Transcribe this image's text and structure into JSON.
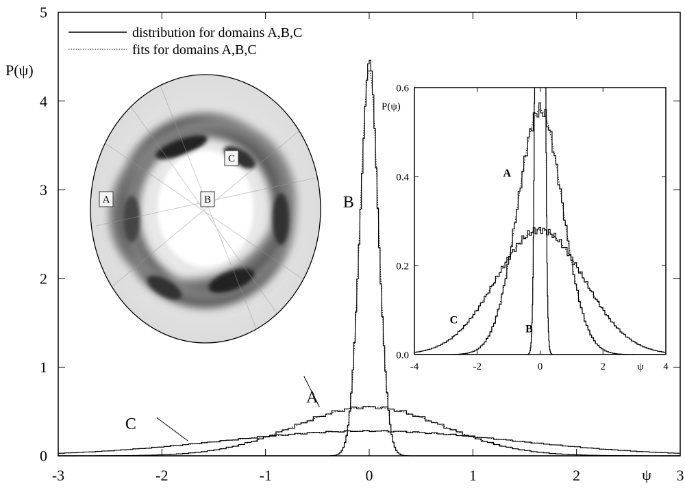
{
  "chart_data": [
    {
      "type": "line",
      "xlabel": "ψ",
      "ylabel": "P(ψ)",
      "xlim": [
        -3,
        3
      ],
      "ylim": [
        0,
        5
      ],
      "xticks": [
        "-3",
        "-2",
        "-1",
        "0",
        "1",
        "2",
        "3"
      ],
      "yticks": [
        "0",
        "1",
        "2",
        "3",
        "4",
        "5"
      ],
      "legend_position": "top-left",
      "legend": [
        {
          "label": "distribution for domains A,B,C",
          "style": "solid"
        },
        {
          "label": "fits for domains A,B,C",
          "style": "dotted"
        }
      ],
      "series": [
        {
          "name": "A",
          "kind": "gaussian",
          "amplitude": 0.55,
          "mean": 0.0,
          "sigma": 0.72
        },
        {
          "name": "B",
          "kind": "gaussian",
          "amplitude": 4.35,
          "mean": 0.0,
          "sigma": 0.09
        },
        {
          "name": "C",
          "kind": "gaussian",
          "amplitude": 0.28,
          "mean": 0.0,
          "sigma": 1.4
        }
      ],
      "annotations": [
        {
          "text": "A",
          "x": -0.55,
          "y": 0.6
        },
        {
          "text": "B",
          "x": -0.2,
          "y": 2.8
        },
        {
          "text": "C",
          "x": -2.3,
          "y": 0.3
        }
      ]
    },
    {
      "type": "line",
      "subplot": "inset",
      "xlabel": "ψ",
      "ylabel": "P(ψ)",
      "xlim": [
        -4,
        4
      ],
      "ylim": [
        0,
        0.6
      ],
      "xticks": [
        "-4",
        "-2",
        "0",
        "2",
        "4"
      ],
      "yticks": [
        "0.0",
        "0.2",
        "0.4",
        "0.6"
      ],
      "series": [
        {
          "name": "A",
          "kind": "gaussian",
          "amplitude": 0.55,
          "mean": 0.0,
          "sigma": 0.72
        },
        {
          "name": "B",
          "kind": "gaussian",
          "amplitude": 4.35,
          "mean": 0.0,
          "sigma": 0.09
        },
        {
          "name": "C",
          "kind": "gaussian",
          "amplitude": 0.28,
          "mean": 0.0,
          "sigma": 1.4
        }
      ],
      "annotations": [
        {
          "text": "A",
          "x": -1.05,
          "y": 0.4
        },
        {
          "text": "B",
          "x": -0.35,
          "y": 0.05
        },
        {
          "text": "C",
          "x": -2.75,
          "y": 0.07
        }
      ]
    }
  ],
  "domain_map": {
    "labels": [
      "A",
      "B",
      "C"
    ]
  }
}
